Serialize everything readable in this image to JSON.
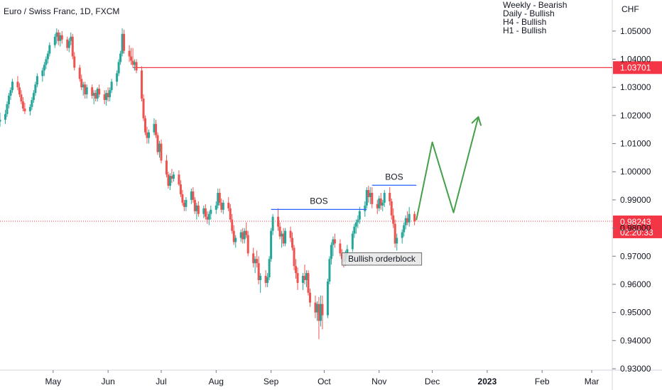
{
  "chart_data": {
    "type": "candlestick",
    "title": "Euro / Swiss Franc, 1D, FXCM",
    "currency_label": "CHF",
    "notes": [
      "Weekly - Bearish",
      "Daily - Bullish",
      "H4 - Bullish",
      "H1 - Bullish"
    ],
    "ylim": [
      0.93,
      1.056
    ],
    "y_ticks": [
      "1.05000",
      "1.04000",
      "1.03000",
      "1.02000",
      "1.01000",
      "1.00000",
      "0.99000",
      "0.98000",
      "0.97000",
      "0.96000",
      "0.95000",
      "0.94000",
      "0.93000"
    ],
    "y_tick_values": [
      1.05,
      1.04,
      1.03,
      1.02,
      1.01,
      1.0,
      0.99,
      0.98,
      0.97,
      0.96,
      0.95,
      0.94,
      0.93
    ],
    "x_ticks": [
      {
        "label": "May",
        "date": "2022-05-01",
        "bold": false
      },
      {
        "label": "Jun",
        "date": "2022-06-01",
        "bold": false
      },
      {
        "label": "Jul",
        "date": "2022-07-01",
        "bold": false
      },
      {
        "label": "Aug",
        "date": "2022-08-01",
        "bold": false
      },
      {
        "label": "Sep",
        "date": "2022-09-01",
        "bold": false
      },
      {
        "label": "Oct",
        "date": "2022-10-01",
        "bold": false
      },
      {
        "label": "Nov",
        "date": "2022-11-01",
        "bold": false
      },
      {
        "label": "Dec",
        "date": "2022-12-01",
        "bold": false
      },
      {
        "label": "2023",
        "date": "2023-01-01",
        "bold": true
      },
      {
        "label": "Feb",
        "date": "2023-02-01",
        "bold": false
      },
      {
        "label": "Mar",
        "date": "2023-03-01",
        "bold": false
      }
    ],
    "x_range": [
      "2022-04-01",
      "2023-03-11"
    ],
    "colors": {
      "up": "#26a69a",
      "down": "#ef5350",
      "resistance": "#f23645",
      "bos": "#2962ff",
      "projection": "#43a047",
      "current_price": "#f23645",
      "orderblock_fill": "#e6e6e6",
      "orderblock_border": "#6b6b6b"
    },
    "resistance": {
      "price": 1.03701,
      "label": "1.03701"
    },
    "current_price": {
      "price": 0.98243,
      "label": "0.98243",
      "countdown": "02:20:33"
    },
    "bos": [
      {
        "label": "BOS",
        "price": 0.9866,
        "from": "2022-09-01",
        "to": "2022-10-25"
      },
      {
        "label": "BOS",
        "price": 0.9952,
        "from": "2022-10-28",
        "to": "2022-11-22"
      }
    ],
    "orderblock": {
      "label": "Bullish orderblock",
      "from": "2022-10-11",
      "to": "2022-11-25",
      "top": 0.9712,
      "bottom": 0.9668
    },
    "projection": [
      {
        "date": "2022-11-22",
        "price": 0.9828
      },
      {
        "date": "2022-12-01",
        "price": 1.0105
      },
      {
        "date": "2022-12-13",
        "price": 0.9855
      },
      {
        "date": "2022-12-27",
        "price": 1.0195
      }
    ],
    "candles": [
      [
        "2022-04-01",
        1.0178,
        1.021,
        1.016,
        1.0185
      ],
      [
        "2022-04-04",
        1.0185,
        1.022,
        1.017,
        1.0205
      ],
      [
        "2022-04-05",
        1.0205,
        1.025,
        1.0195,
        1.024
      ],
      [
        "2022-04-06",
        1.024,
        1.028,
        1.0225,
        1.027
      ],
      [
        "2022-04-07",
        1.027,
        1.03,
        1.0255,
        1.029
      ],
      [
        "2022-04-08",
        1.029,
        1.033,
        1.028,
        1.032
      ],
      [
        "2022-04-11",
        1.032,
        1.034,
        1.029,
        1.03
      ],
      [
        "2022-04-12",
        1.03,
        1.0315,
        1.0265,
        1.0275
      ],
      [
        "2022-04-13",
        1.0275,
        1.029,
        1.024,
        1.025
      ],
      [
        "2022-04-14",
        1.025,
        1.0265,
        1.0215,
        1.0225
      ],
      [
        "2022-04-15",
        1.0225,
        1.0245,
        1.0205,
        1.0215
      ],
      [
        "2022-04-18",
        1.0215,
        1.024,
        1.02,
        1.023
      ],
      [
        "2022-04-19",
        1.023,
        1.0265,
        1.022,
        1.0255
      ],
      [
        "2022-04-20",
        1.0255,
        1.029,
        1.0245,
        1.028
      ],
      [
        "2022-04-21",
        1.028,
        1.032,
        1.027,
        1.031
      ],
      [
        "2022-04-22",
        1.031,
        1.035,
        1.03,
        1.034
      ],
      [
        "2022-04-25",
        1.034,
        1.037,
        1.032,
        1.036
      ],
      [
        "2022-04-26",
        1.036,
        1.039,
        1.034,
        1.038
      ],
      [
        "2022-04-27",
        1.038,
        1.041,
        1.0365,
        1.04
      ],
      [
        "2022-04-28",
        1.04,
        1.043,
        1.0385,
        1.042
      ],
      [
        "2022-04-29",
        1.042,
        1.046,
        1.041,
        1.045
      ],
      [
        "2022-05-02",
        1.045,
        1.049,
        1.044,
        1.048
      ],
      [
        "2022-05-03",
        1.048,
        1.051,
        1.0455,
        1.0495
      ],
      [
        "2022-05-04",
        1.0495,
        1.0505,
        1.045,
        1.0465
      ],
      [
        "2022-05-05",
        1.0465,
        1.0495,
        1.0445,
        1.0485
      ],
      [
        "2022-05-06",
        1.0485,
        1.05,
        1.0455,
        1.047
      ],
      [
        "2022-05-09",
        1.047,
        1.048,
        1.043,
        1.044
      ],
      [
        "2022-05-10",
        1.044,
        1.0475,
        1.0425,
        1.0465
      ],
      [
        "2022-05-11",
        1.0465,
        1.0495,
        1.045,
        1.048
      ],
      [
        "2022-05-12",
        1.048,
        1.049,
        1.04,
        1.041
      ],
      [
        "2022-05-13",
        1.041,
        1.0425,
        1.036,
        1.037
      ],
      [
        "2022-05-16",
        1.037,
        1.038,
        1.032,
        1.033
      ],
      [
        "2022-05-17",
        1.033,
        1.0345,
        1.029,
        1.03
      ],
      [
        "2022-05-18",
        1.03,
        1.032,
        1.027,
        1.031
      ],
      [
        "2022-05-19",
        1.031,
        1.032,
        1.026,
        1.0275
      ],
      [
        "2022-05-20",
        1.0275,
        1.031,
        1.026,
        1.03
      ],
      [
        "2022-05-23",
        1.03,
        1.031,
        1.026,
        1.027
      ],
      [
        "2022-05-24",
        1.027,
        1.029,
        1.024,
        1.028
      ],
      [
        "2022-05-25",
        1.028,
        1.029,
        1.025,
        1.026
      ],
      [
        "2022-05-26",
        1.026,
        1.03,
        1.025,
        1.0295
      ],
      [
        "2022-05-27",
        1.0295,
        1.031,
        1.0265,
        1.0275
      ],
      [
        "2022-05-30",
        1.0275,
        1.029,
        1.024,
        1.0255
      ],
      [
        "2022-05-31",
        1.0255,
        1.029,
        1.0235,
        1.028
      ],
      [
        "2022-06-01",
        1.028,
        1.03,
        1.025,
        1.0265
      ],
      [
        "2022-06-02",
        1.0265,
        1.03,
        1.025,
        1.029
      ],
      [
        "2022-06-03",
        1.029,
        1.033,
        1.028,
        1.032
      ],
      [
        "2022-06-06",
        1.032,
        1.036,
        1.0305,
        1.035
      ],
      [
        "2022-06-07",
        1.035,
        1.04,
        1.034,
        1.039
      ],
      [
        "2022-06-08",
        1.039,
        1.043,
        1.038,
        1.042
      ],
      [
        "2022-06-09",
        1.042,
        1.051,
        1.041,
        1.049
      ],
      [
        "2022-06-10",
        1.049,
        1.0505,
        1.042,
        1.043
      ],
      [
        "2022-06-13",
        1.043,
        1.045,
        1.039,
        1.041
      ],
      [
        "2022-06-14",
        1.041,
        1.044,
        1.038,
        1.0395
      ],
      [
        "2022-06-15",
        1.0395,
        1.044,
        1.037,
        1.038
      ],
      [
        "2022-06-16",
        1.038,
        1.04,
        1.036,
        1.039
      ],
      [
        "2022-06-17",
        1.039,
        1.04,
        1.035,
        1.036
      ],
      [
        "2022-06-20",
        1.036,
        1.0375,
        1.025,
        1.026
      ],
      [
        "2022-06-21",
        1.026,
        1.0275,
        1.018,
        1.019
      ],
      [
        "2022-06-22",
        1.019,
        1.02,
        1.013,
        1.014
      ],
      [
        "2022-06-23",
        1.014,
        1.016,
        1.01,
        1.012
      ],
      [
        "2022-06-24",
        1.012,
        1.015,
        1.01,
        1.014
      ],
      [
        "2022-06-27",
        1.014,
        1.019,
        1.013,
        1.017
      ],
      [
        "2022-06-28",
        1.017,
        1.0185,
        1.012,
        1.013
      ],
      [
        "2022-06-29",
        1.013,
        1.014,
        1.006,
        1.007
      ],
      [
        "2022-06-30",
        1.007,
        1.011,
        1.005,
        1.01
      ],
      [
        "2022-07-01",
        1.01,
        1.0115,
        1.003,
        1.004
      ],
      [
        "2022-07-04",
        1.004,
        1.006,
        0.998,
        0.999
      ],
      [
        "2022-07-05",
        0.999,
        1.0,
        0.994,
        0.995
      ],
      [
        "2022-07-06",
        0.995,
        0.9995,
        0.9935,
        0.9985
      ],
      [
        "2022-07-07",
        0.9985,
        1.001,
        0.996,
        0.9975
      ],
      [
        "2022-07-08",
        0.9975,
        1.0,
        0.9965,
        0.999
      ],
      [
        "2022-07-11",
        0.999,
        1.0005,
        0.995,
        0.9955
      ],
      [
        "2022-07-12",
        0.9955,
        0.997,
        0.991,
        0.992
      ],
      [
        "2022-07-13",
        0.992,
        0.9935,
        0.988,
        0.989
      ],
      [
        "2022-07-14",
        0.989,
        0.99,
        0.986,
        0.9875
      ],
      [
        "2022-07-15",
        0.9875,
        0.991,
        0.986,
        0.99
      ],
      [
        "2022-07-18",
        0.99,
        0.994,
        0.9885,
        0.993
      ],
      [
        "2022-07-19",
        0.993,
        0.9945,
        0.989,
        0.99
      ],
      [
        "2022-07-20",
        0.99,
        0.991,
        0.985,
        0.986
      ],
      [
        "2022-07-21",
        0.986,
        0.989,
        0.983,
        0.988
      ],
      [
        "2022-07-22",
        0.988,
        0.9895,
        0.984,
        0.985
      ],
      [
        "2022-07-25",
        0.985,
        0.988,
        0.9835,
        0.987
      ],
      [
        "2022-07-26",
        0.987,
        0.9885,
        0.983,
        0.984
      ],
      [
        "2022-07-27",
        0.984,
        0.986,
        0.9815,
        0.983
      ],
      [
        "2022-07-28",
        0.983,
        0.986,
        0.981,
        0.985
      ],
      [
        "2022-07-29",
        0.985,
        0.988,
        0.983,
        0.9865
      ],
      [
        "2022-08-01",
        0.9865,
        0.9895,
        0.985,
        0.988
      ],
      [
        "2022-08-02",
        0.988,
        0.994,
        0.987,
        0.9925
      ],
      [
        "2022-08-03",
        0.9925,
        0.994,
        0.988,
        0.989
      ],
      [
        "2022-08-04",
        0.989,
        0.9905,
        0.9855,
        0.9865
      ],
      [
        "2022-08-05",
        0.9865,
        0.99,
        0.985,
        0.989
      ],
      [
        "2022-08-08",
        0.989,
        0.991,
        0.986,
        0.987
      ],
      [
        "2022-08-09",
        0.987,
        0.9885,
        0.982,
        0.983
      ],
      [
        "2022-08-10",
        0.983,
        0.985,
        0.978,
        0.979
      ],
      [
        "2022-08-11",
        0.979,
        0.981,
        0.974,
        0.975
      ],
      [
        "2022-08-12",
        0.975,
        0.9775,
        0.973,
        0.9765
      ],
      [
        "2022-08-15",
        0.9765,
        0.9795,
        0.975,
        0.9785
      ],
      [
        "2022-08-16",
        0.9785,
        0.98,
        0.9745,
        0.976
      ],
      [
        "2022-08-17",
        0.976,
        0.98,
        0.9745,
        0.979
      ],
      [
        "2022-08-18",
        0.979,
        0.982,
        0.9765,
        0.9775
      ],
      [
        "2022-08-19",
        0.9775,
        0.979,
        0.97,
        0.971
      ],
      [
        "2022-08-22",
        0.971,
        0.973,
        0.966,
        0.9675
      ],
      [
        "2022-08-23",
        0.9675,
        0.97,
        0.964,
        0.969
      ],
      [
        "2022-08-24",
        0.969,
        0.972,
        0.966,
        0.9675
      ],
      [
        "2022-08-25",
        0.9675,
        0.97,
        0.96,
        0.9615
      ],
      [
        "2022-08-26",
        0.9615,
        0.964,
        0.957,
        0.963
      ],
      [
        "2022-08-29",
        0.963,
        0.965,
        0.959,
        0.9605
      ],
      [
        "2022-08-30",
        0.9605,
        0.964,
        0.959,
        0.9625
      ],
      [
        "2022-08-31",
        0.9625,
        0.97,
        0.9615,
        0.969
      ],
      [
        "2022-09-01",
        0.969,
        0.98,
        0.968,
        0.979
      ],
      [
        "2022-09-02",
        0.979,
        0.985,
        0.9775,
        0.984
      ],
      [
        "2022-09-05",
        0.984,
        0.987,
        0.979,
        0.9805
      ],
      [
        "2022-09-06",
        0.9805,
        0.982,
        0.976,
        0.977
      ],
      [
        "2022-09-07",
        0.977,
        0.979,
        0.973,
        0.978
      ],
      [
        "2022-09-08",
        0.978,
        0.98,
        0.9735,
        0.9745
      ],
      [
        "2022-09-09",
        0.9745,
        0.98,
        0.9735,
        0.979
      ],
      [
        "2022-09-12",
        0.979,
        0.9805,
        0.975,
        0.9765
      ],
      [
        "2022-09-13",
        0.9765,
        0.9785,
        0.972,
        0.973
      ],
      [
        "2022-09-14",
        0.973,
        0.974,
        0.965,
        0.9665
      ],
      [
        "2022-09-15",
        0.9665,
        0.969,
        0.962,
        0.964
      ],
      [
        "2022-09-16",
        0.964,
        0.966,
        0.958,
        0.9605
      ],
      [
        "2022-09-19",
        0.9605,
        0.964,
        0.958,
        0.963
      ],
      [
        "2022-09-20",
        0.963,
        0.967,
        0.96,
        0.9615
      ],
      [
        "2022-09-21",
        0.9615,
        0.965,
        0.959,
        0.964
      ],
      [
        "2022-09-22",
        0.964,
        0.965,
        0.956,
        0.957
      ],
      [
        "2022-09-23",
        0.957,
        0.9585,
        0.952,
        0.9535
      ],
      [
        "2022-09-26",
        0.9535,
        0.956,
        0.948,
        0.95
      ],
      [
        "2022-09-27",
        0.95,
        0.954,
        0.947,
        0.953
      ],
      [
        "2022-09-28",
        0.953,
        0.9555,
        0.9405,
        0.947
      ],
      [
        "2022-09-29",
        0.947,
        0.956,
        0.945,
        0.953
      ],
      [
        "2022-09-30",
        0.953,
        0.956,
        0.944,
        0.949
      ],
      [
        "2022-10-03",
        0.949,
        0.962,
        0.948,
        0.961
      ],
      [
        "2022-10-04",
        0.961,
        0.97,
        0.96,
        0.969
      ],
      [
        "2022-10-05",
        0.969,
        0.975,
        0.967,
        0.974
      ],
      [
        "2022-10-06",
        0.974,
        0.977,
        0.97,
        0.976
      ],
      [
        "2022-10-07",
        0.976,
        0.978,
        0.973,
        0.9745
      ],
      [
        "2022-10-10",
        0.9745,
        0.976,
        0.97,
        0.971
      ],
      [
        "2022-10-11",
        0.971,
        0.9725,
        0.9675,
        0.969
      ],
      [
        "2022-10-12",
        0.969,
        0.971,
        0.966,
        0.968
      ],
      [
        "2022-10-13",
        0.968,
        0.972,
        0.9665,
        0.971
      ],
      [
        "2022-10-14",
        0.971,
        0.974,
        0.969,
        0.9725
      ],
      [
        "2022-10-17",
        0.9725,
        0.979,
        0.9715,
        0.978
      ],
      [
        "2022-10-18",
        0.978,
        0.9815,
        0.9765,
        0.9805
      ],
      [
        "2022-10-19",
        0.9805,
        0.983,
        0.978,
        0.982
      ],
      [
        "2022-10-20",
        0.982,
        0.9845,
        0.98,
        0.983
      ],
      [
        "2022-10-21",
        0.983,
        0.9875,
        0.9815,
        0.986
      ],
      [
        "2022-10-24",
        0.986,
        0.9895,
        0.984,
        0.988
      ],
      [
        "2022-10-25",
        0.988,
        0.9945,
        0.987,
        0.9935
      ],
      [
        "2022-10-26",
        0.9935,
        0.995,
        0.989,
        0.991
      ],
      [
        "2022-10-27",
        0.991,
        0.9945,
        0.9885,
        0.9925
      ],
      [
        "2022-10-28",
        0.9925,
        0.9945,
        0.987,
        0.9885
      ],
      [
        "2022-10-31",
        0.9885,
        0.99,
        0.985,
        0.987
      ],
      [
        "2022-11-01",
        0.987,
        0.9915,
        0.986,
        0.9905
      ],
      [
        "2022-11-02",
        0.9905,
        0.9925,
        0.9865,
        0.988
      ],
      [
        "2022-11-03",
        0.988,
        0.99,
        0.986,
        0.989
      ],
      [
        "2022-11-04",
        0.989,
        0.9935,
        0.9875,
        0.9925
      ],
      [
        "2022-11-07",
        0.9925,
        0.9945,
        0.988,
        0.9895
      ],
      [
        "2022-11-08",
        0.9895,
        0.9905,
        0.983,
        0.9845
      ],
      [
        "2022-11-09",
        0.9845,
        0.987,
        0.98,
        0.9815
      ],
      [
        "2022-11-10",
        0.9815,
        0.983,
        0.973,
        0.9745
      ],
      [
        "2022-11-11",
        0.9745,
        0.978,
        0.972,
        0.9765
      ],
      [
        "2022-11-14",
        0.9765,
        0.9795,
        0.9745,
        0.9785
      ],
      [
        "2022-11-15",
        0.9785,
        0.982,
        0.977,
        0.981
      ],
      [
        "2022-11-16",
        0.981,
        0.9845,
        0.9795,
        0.9835
      ],
      [
        "2022-11-17",
        0.9835,
        0.986,
        0.981,
        0.982
      ],
      [
        "2022-11-18",
        0.982,
        0.9875,
        0.9805,
        0.985
      ],
      [
        "2022-11-21",
        0.985,
        0.986,
        0.981,
        0.9824
      ]
    ]
  }
}
